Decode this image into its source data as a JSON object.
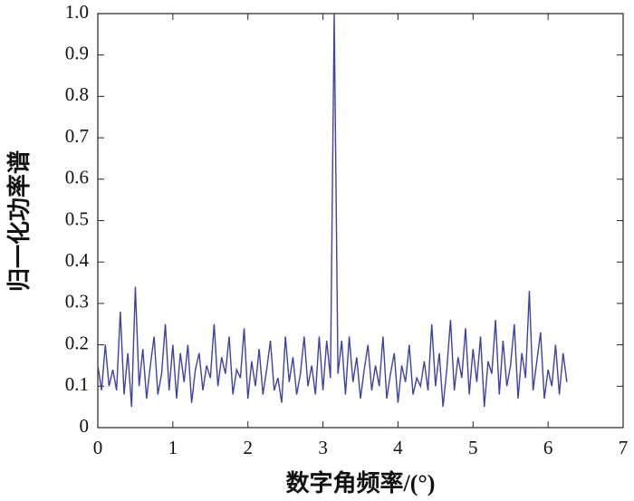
{
  "chart_data": {
    "type": "line",
    "xlabel": "数字角频率/(°)",
    "ylabel": "归一化功率谱",
    "x": [
      0,
      0.05,
      0.1,
      0.15,
      0.2,
      0.25,
      0.3,
      0.35,
      0.4,
      0.45,
      0.5,
      0.55,
      0.6,
      0.65,
      0.7,
      0.75,
      0.8,
      0.85,
      0.9,
      0.95,
      1,
      1.05,
      1.1,
      1.15,
      1.2,
      1.25,
      1.3,
      1.35,
      1.4,
      1.45,
      1.5,
      1.55,
      1.6,
      1.65,
      1.7,
      1.75,
      1.8,
      1.85,
      1.9,
      1.95,
      2,
      2.05,
      2.1,
      2.15,
      2.2,
      2.25,
      2.3,
      2.35,
      2.4,
      2.45,
      2.5,
      2.55,
      2.6,
      2.65,
      2.7,
      2.75,
      2.8,
      2.85,
      2.9,
      2.95,
      3,
      3.05,
      3.1,
      3.15,
      3.2,
      3.25,
      3.3,
      3.35,
      3.4,
      3.45,
      3.5,
      3.55,
      3.6,
      3.65,
      3.7,
      3.75,
      3.8,
      3.85,
      3.9,
      3.95,
      4,
      4.05,
      4.1,
      4.15,
      4.2,
      4.25,
      4.3,
      4.35,
      4.4,
      4.45,
      4.5,
      4.55,
      4.6,
      4.65,
      4.7,
      4.75,
      4.8,
      4.85,
      4.9,
      4.95,
      5,
      5.05,
      5.1,
      5.15,
      5.2,
      5.25,
      5.3,
      5.35,
      5.4,
      5.45,
      5.5,
      5.55,
      5.6,
      5.65,
      5.7,
      5.75,
      5.8,
      5.85,
      5.9,
      5.95,
      6,
      6.05,
      6.1,
      6.15,
      6.2,
      6.25
    ],
    "series": [
      {
        "color": "#3f41a3",
        "values": [
          0.15,
          0.09,
          0.2,
          0.1,
          0.14,
          0.09,
          0.28,
          0.08,
          0.18,
          0.05,
          0.34,
          0.1,
          0.19,
          0.07,
          0.15,
          0.22,
          0.08,
          0.13,
          0.25,
          0.09,
          0.2,
          0.07,
          0.18,
          0.11,
          0.2,
          0.06,
          0.14,
          0.18,
          0.09,
          0.15,
          0.12,
          0.25,
          0.1,
          0.17,
          0.13,
          0.22,
          0.08,
          0.14,
          0.12,
          0.24,
          0.07,
          0.16,
          0.1,
          0.19,
          0.08,
          0.14,
          0.21,
          0.09,
          0.12,
          0.06,
          0.22,
          0.11,
          0.17,
          0.08,
          0.13,
          0.22,
          0.1,
          0.15,
          0.08,
          0.22,
          0.09,
          0.21,
          0.12,
          1.0,
          0.13,
          0.21,
          0.08,
          0.22,
          0.11,
          0.17,
          0.07,
          0.14,
          0.2,
          0.09,
          0.15,
          0.1,
          0.22,
          0.07,
          0.13,
          0.18,
          0.06,
          0.15,
          0.11,
          0.2,
          0.08,
          0.12,
          0.1,
          0.16,
          0.09,
          0.25,
          0.1,
          0.18,
          0.05,
          0.14,
          0.26,
          0.09,
          0.17,
          0.12,
          0.24,
          0.08,
          0.19,
          0.11,
          0.22,
          0.05,
          0.16,
          0.13,
          0.26,
          0.08,
          0.21,
          0.1,
          0.15,
          0.25,
          0.07,
          0.18,
          0.12,
          0.33,
          0.09,
          0.16,
          0.23,
          0.07,
          0.14,
          0.1,
          0.2,
          0.08,
          0.18,
          0.11
        ]
      }
    ],
    "xlim": [
      0,
      7
    ],
    "xticks": [
      0,
      1,
      2,
      3,
      4,
      5,
      6,
      7
    ],
    "ylim": [
      0,
      1
    ],
    "yticks": [
      0,
      0.1,
      0.2,
      0.3,
      0.4,
      0.5,
      0.6,
      0.7,
      0.8,
      0.9,
      {
        "value": 1,
        "label": "1.0"
      }
    ]
  }
}
